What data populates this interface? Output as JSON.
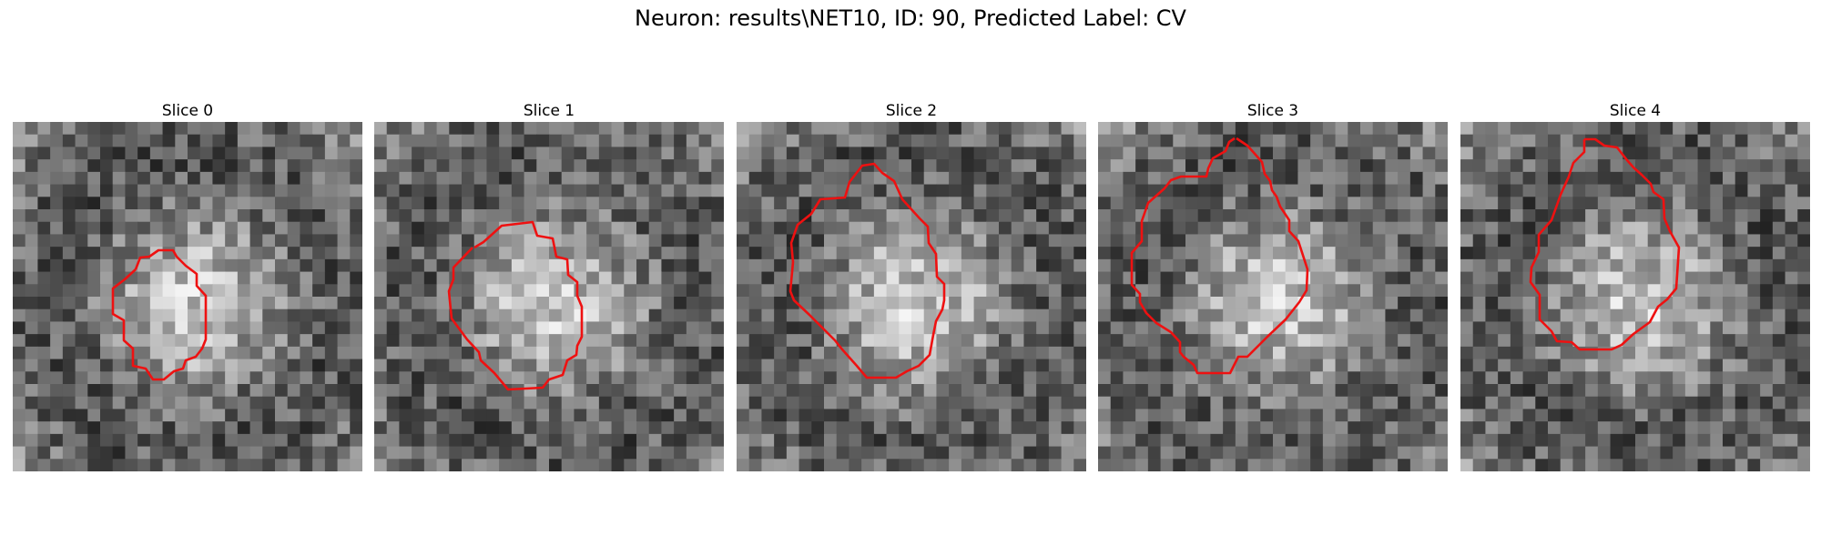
{
  "figure": {
    "title": "Neuron: results\\NET10, ID: 90, Predicted Label: CV"
  },
  "colors": {
    "contour": "#ee1111",
    "background": "#ffffff"
  },
  "panels": [
    {
      "title": "Slice 0"
    },
    {
      "title": "Slice 1"
    },
    {
      "title": "Slice 2"
    },
    {
      "title": "Slice 3"
    },
    {
      "title": "Slice 4"
    }
  ]
}
